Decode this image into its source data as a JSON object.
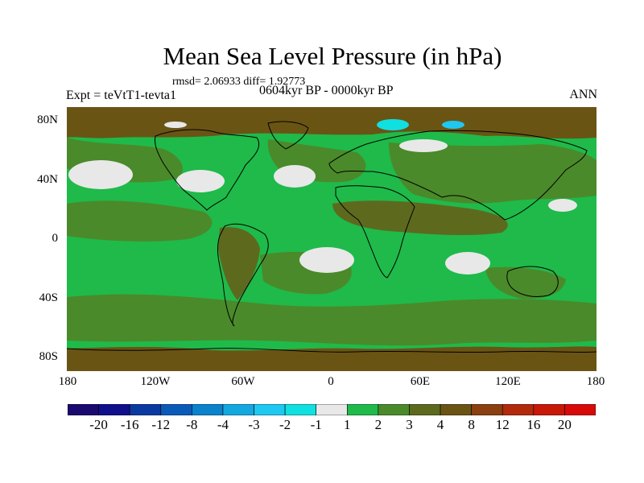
{
  "map": {
    "title": "Mean Sea Level Pressure (in hPa)",
    "stats": "rmsd= 2.06933 diff= 1.92773",
    "experiment": "Expt = teVtT1-tevta1",
    "period": "0604kyr BP - 0000kyr BP",
    "season": "ANN",
    "lat_labels": [
      "80N",
      "40N",
      "0",
      "40S",
      "80S"
    ],
    "lon_labels": [
      "180",
      "120W",
      "60W",
      "0",
      "60E",
      "120E",
      "180"
    ]
  },
  "chart_data": {
    "type": "heatmap",
    "title": "Mean Sea Level Pressure (in hPa)",
    "subtitle": "0604kyr BP - 0000kyr BP",
    "units": "hPa",
    "x_range": [
      -180,
      180
    ],
    "y_range": [
      -90,
      90
    ],
    "colorbar": {
      "levels": [
        "-20",
        "-16",
        "-12",
        "-8",
        "-4",
        "-3",
        "-2",
        "-1",
        "1",
        "2",
        "3",
        "4",
        "8",
        "12",
        "16",
        "20"
      ],
      "colors": [
        "#1a0a6e",
        "#10108c",
        "#0a3aa0",
        "#0a5ab8",
        "#0a82cc",
        "#14a8e0",
        "#1ec8f0",
        "#10e0e0",
        "#e8e8e8",
        "#1fba4a",
        "#4a8a2a",
        "#5d6a1e",
        "#6a5414",
        "#8a4010",
        "#b22a0c",
        "#c81808",
        "#d80a0a"
      ]
    }
  }
}
